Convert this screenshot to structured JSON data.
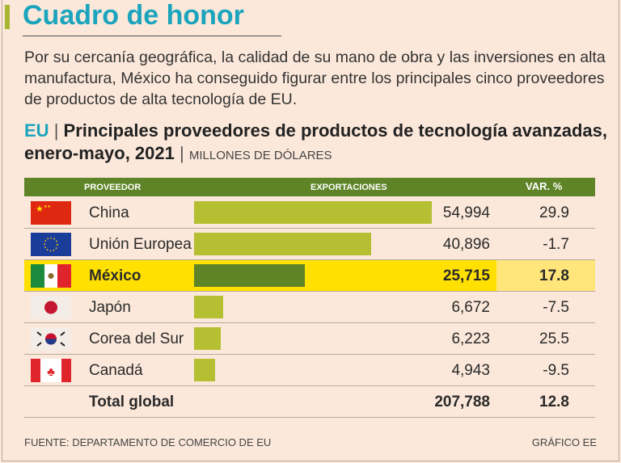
{
  "header": {
    "title": "Cuadro de honor",
    "intro": "Por su cercanía geográfica, la calidad de su mano de obra y las inversiones en alta manufactura, México ha conseguido figurar entre los principales cinco proveedores de productos de alta tecnología de EU."
  },
  "chart_data": {
    "type": "bar",
    "title_prefix": "EU",
    "title": "Principales proveedores de productos de tecnología avanzadas, enero-mayo, 2021",
    "unit": "MILLONES DE DÓLARES",
    "columns": [
      "PROVEEDOR",
      "EXPORTACIONES",
      "VAR. %"
    ],
    "categories": [
      "China",
      "Unión Europea",
      "México",
      "Japón",
      "Corea del Sur",
      "Canadá"
    ],
    "values": [
      54994,
      40896,
      25715,
      6672,
      6223,
      4943
    ],
    "values_labels": [
      "54,994",
      "40,896",
      "25,715",
      "6,672",
      "6,223",
      "4,943"
    ],
    "var": [
      "29.9",
      "-1.7",
      "17.8",
      "-7.5",
      "25.5",
      "-9.5"
    ],
    "highlight": "México",
    "flags": [
      "china-flag",
      "eu-flag",
      "mexico-flag",
      "japan-flag",
      "south-korea-flag",
      "canada-flag"
    ],
    "total": {
      "label": "Total global",
      "value": "207,788",
      "var": "12.8"
    },
    "colors": {
      "bar": "#b4bf32",
      "highlight_bar": "#5f8427",
      "highlight_row": "#ffe000",
      "header": "#5f8427",
      "accent": "#1ba4bd"
    }
  },
  "footer": {
    "source": "FUENTE: DEPARTAMENTO DE COMERCIO DE EU",
    "credit": "GRÁFICO EE"
  }
}
